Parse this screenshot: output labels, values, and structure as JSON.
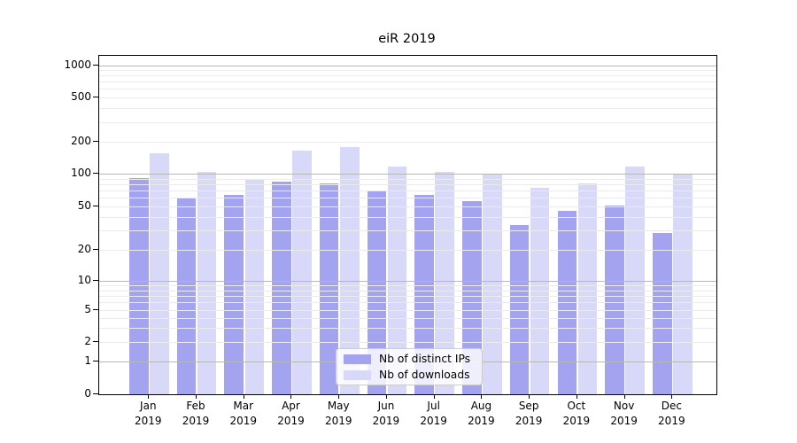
{
  "title": "eiR 2019",
  "colors": {
    "distinct_ips": "#a3a3f0",
    "downloads": "#d8d8f8",
    "grid_major": "#b7b7b7",
    "grid_minor": "#ebebeb",
    "axis": "#000000",
    "legend_border": "#cccccc"
  },
  "legend": {
    "items": [
      {
        "label": "Nb of distinct IPs",
        "series": "distinct_ips"
      },
      {
        "label": "Nb of downloads",
        "series": "downloads"
      }
    ]
  },
  "chart_data": {
    "type": "bar",
    "title": "eiR 2019",
    "categories": [
      "Jan",
      "Feb",
      "Mar",
      "Apr",
      "May",
      "Jun",
      "Jul",
      "Aug",
      "Sep",
      "Oct",
      "Nov",
      "Dec"
    ],
    "category_year": "2019",
    "series": [
      {
        "name": "Nb of distinct IPs",
        "color_key": "distinct_ips",
        "values": [
          92,
          60,
          65,
          86,
          82,
          71,
          65,
          57,
          34,
          46,
          51,
          29
        ]
      },
      {
        "name": "Nb of downloads",
        "color_key": "downloads",
        "values": [
          157,
          104,
          91,
          164,
          177,
          118,
          104,
          100,
          75,
          82,
          118,
          100
        ]
      }
    ],
    "xlabel": "",
    "ylabel": "",
    "yscale": "log1p",
    "yticks": [
      0,
      1,
      2,
      5,
      10,
      20,
      50,
      100,
      200,
      500,
      1000
    ],
    "ytick_labels": [
      "0",
      "1",
      "2",
      "5",
      "10",
      "20",
      "50",
      "100",
      "200",
      "500",
      "1000"
    ],
    "minor_grid_values": [
      3,
      4,
      6,
      7,
      8,
      9,
      30,
      40,
      60,
      70,
      80,
      90,
      300,
      400,
      600,
      700,
      800,
      900
    ],
    "major_grid_values": [
      1,
      10,
      100,
      1000
    ],
    "ylim": [
      0,
      1400
    ],
    "grid": "horizontal, drawn above bars",
    "legend_position": "lower center"
  }
}
